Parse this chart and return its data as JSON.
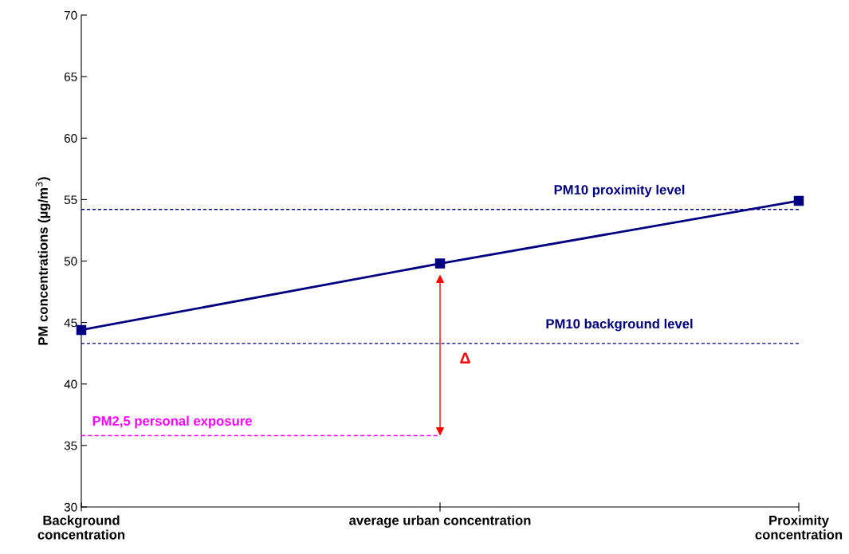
{
  "chart_data": {
    "type": "line",
    "ylabel": "PM concentrations (µg/m$^{3}$)",
    "categories": [
      "Background concentration",
      "average urban concentration",
      "Proximity concentration"
    ],
    "series": [
      {
        "color": "#000080",
        "values": [
          44.4,
          49.8,
          54.9
        ],
        "marker": "square",
        "line_style": "solid"
      },
      {
        "name": "PM2,5 personal exposure",
        "color": "#ff00ff",
        "values": [
          35.8,
          35.8,
          null
        ],
        "marker": "none",
        "line_style": "dashed"
      }
    ],
    "ylim": [
      30,
      70
    ],
    "yticks": [
      30,
      35,
      40,
      45,
      50,
      55,
      60,
      65,
      70
    ],
    "grid": false,
    "legend": false,
    "ref_lines": [
      {
        "axis": "y",
        "value": 54.2,
        "label": "PM10 proximity level",
        "color": "#000080",
        "line_style": "dashed"
      },
      {
        "axis": "y",
        "value": 43.3,
        "label": "PM10 background level",
        "color": "#000080",
        "line_style": "dashed"
      }
    ],
    "annotations": [
      "Δ"
    ]
  }
}
